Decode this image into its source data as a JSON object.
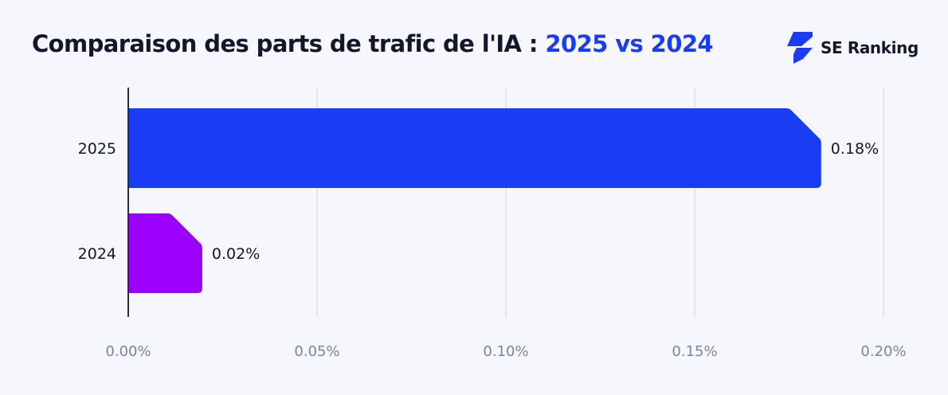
{
  "title": {
    "main": "Comparaison des parts de trafic de l'IA : ",
    "highlight": "2025 vs 2024"
  },
  "logo": {
    "text": "SE Ranking",
    "icon": "se-ranking-bolt-icon"
  },
  "chart_data": {
    "type": "bar",
    "orientation": "horizontal",
    "categories": [
      "2025",
      "2024"
    ],
    "values": [
      0.1835,
      0.0196
    ],
    "data_labels": [
      "0.18%",
      "0.02%"
    ],
    "colors": [
      "#1A3CF5",
      "#9B00FA"
    ],
    "xlim": [
      0,
      0.2
    ],
    "xticks": [
      0,
      0.05,
      0.1,
      0.15,
      0.2
    ],
    "xtick_labels": [
      "0.00%",
      "0.05%",
      "0.10%",
      "0.15%",
      "0.20%"
    ],
    "grid": "vertical",
    "xlabel": "",
    "ylabel": ""
  }
}
